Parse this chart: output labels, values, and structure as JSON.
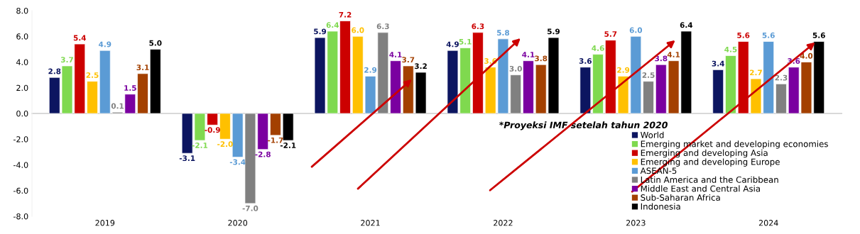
{
  "chart_data": {
    "type": "bar",
    "categories": [
      "2019",
      "2020",
      "2021",
      "2022",
      "2023",
      "2024"
    ],
    "series": [
      {
        "name": "World",
        "color": "#0c1560",
        "values": [
          2.8,
          -3.1,
          5.9,
          4.9,
          3.6,
          3.4
        ],
        "value_labels": [
          "2.8",
          "-3.1",
          "5.9",
          "4.9",
          "3.6",
          "3.4"
        ]
      },
      {
        "name": "Emerging market and developing economies",
        "color": "#7fd94f",
        "values": [
          3.7,
          -2.1,
          6.4,
          5.1,
          4.6,
          4.5
        ],
        "value_labels": [
          "3.7",
          "-2.1",
          "6.4",
          "5.1",
          "4.6",
          "4.5"
        ]
      },
      {
        "name": "Emerging and developing Asia",
        "color": "#cc0000",
        "values": [
          5.4,
          -0.9,
          7.2,
          6.3,
          5.7,
          5.6
        ],
        "value_labels": [
          "5.4",
          "-0.9",
          "7.2",
          "6.3",
          "5.7",
          "5.6"
        ]
      },
      {
        "name": "Emerging and developing Europe",
        "color": "#ffc000",
        "values": [
          2.5,
          -2.0,
          6.0,
          3.6,
          2.9,
          2.7
        ],
        "value_labels": [
          "2.5",
          "-2.0",
          "6.0",
          "3.6",
          "2.9",
          "2.7"
        ]
      },
      {
        "name": "ASEAN-5",
        "color": "#5b9bd5",
        "values": [
          4.9,
          -3.4,
          2.9,
          5.8,
          6.0,
          5.6
        ],
        "value_labels": [
          "4.9",
          "-3.4",
          "2.9",
          "5.8",
          "6.0",
          "5.6"
        ]
      },
      {
        "name": "Latin America and the Caribbean",
        "color": "#808080",
        "values": [
          0.1,
          -7.0,
          6.3,
          3.0,
          2.5,
          2.3
        ],
        "value_labels": [
          "0.1",
          "-7.0",
          "6.3",
          "3.0",
          "2.5",
          "2.3"
        ]
      },
      {
        "name": "Middle East and Central Asia",
        "color": "#7a00a0",
        "values": [
          1.5,
          -2.8,
          4.1,
          4.1,
          3.8,
          3.6
        ],
        "value_labels": [
          "1.5",
          "-2.8",
          "4.1",
          "4.1",
          "3.8",
          "3.6"
        ]
      },
      {
        "name": "Sub-Saharan Africa",
        "color": "#a34000",
        "values": [
          3.1,
          -1.7,
          3.7,
          3.8,
          4.1,
          4.0
        ],
        "value_labels": [
          "3.1",
          "-1.7",
          "3.7",
          "3.8",
          "4.1",
          "4.0"
        ]
      },
      {
        "name": "Indonesia",
        "color": "#000000",
        "values": [
          5.0,
          -2.1,
          3.2,
          5.9,
          6.4,
          5.6
        ],
        "value_labels": [
          "5.0",
          "-2.1",
          "3.2",
          "5.9",
          "6.4",
          "5.6"
        ]
      }
    ],
    "ylim": [
      -8,
      8
    ],
    "yticks": [
      {
        "value": -8,
        "label": "-8.0"
      },
      {
        "value": -6,
        "label": "-6.0"
      },
      {
        "value": -4,
        "label": "-4.0"
      },
      {
        "value": -2,
        "label": "-2.0"
      },
      {
        "value": 0,
        "label": "0.0"
      },
      {
        "value": 2,
        "label": "2.0"
      },
      {
        "value": 4,
        "label": "4.0"
      },
      {
        "value": 6,
        "label": "6.0"
      },
      {
        "value": 8,
        "label": "8.0"
      }
    ],
    "annotations": [
      "*Proyeksi IMF setelah tahun 2020"
    ],
    "legend": "bottom right"
  }
}
